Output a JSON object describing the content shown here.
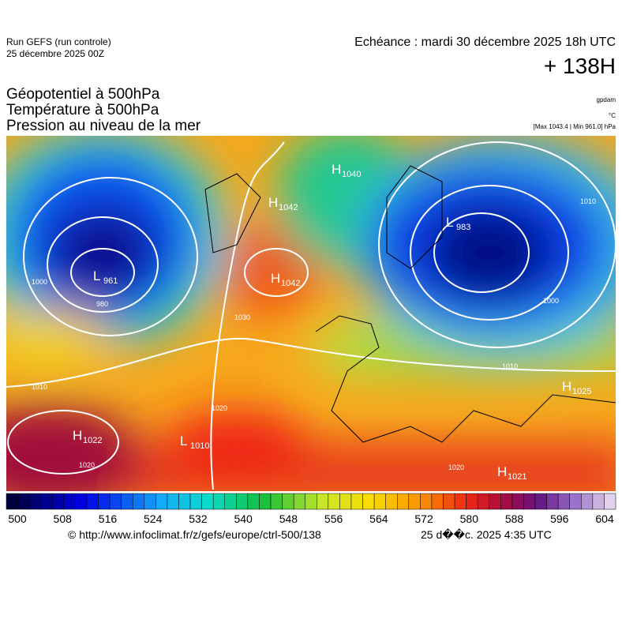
{
  "header": {
    "model": "Run GEFS (run controle)",
    "run": "25 décembre 2025 00Z",
    "echeance": "Echéance : mardi 30 décembre 2025 18h UTC",
    "lead": "+ 138H",
    "fields": [
      "Géopotentiel à 500hPa",
      "Température à 500hPa",
      "Pression au niveau de la mer"
    ],
    "units": [
      "gpdam",
      "°C",
      "[Max 1043.4 | Min 961.0] hPa"
    ]
  },
  "centers": [
    {
      "kind": "L",
      "value": 961
    },
    {
      "kind": "L",
      "value": 983
    },
    {
      "kind": "H",
      "value": 1042
    },
    {
      "kind": "H",
      "value": 1042
    },
    {
      "kind": "H",
      "value": 1040
    },
    {
      "kind": "H",
      "value": 1025
    },
    {
      "kind": "H",
      "value": 1022
    },
    {
      "kind": "L",
      "value": 1010
    },
    {
      "kind": "H",
      "value": 1021
    }
  ],
  "isobar_labels": [
    "1000",
    "980",
    "1010",
    "1020",
    "1030",
    "1000",
    "1010",
    "1020",
    "1020",
    "1010"
  ],
  "colorbar": {
    "ticks": [
      500,
      508,
      516,
      524,
      532,
      540,
      548,
      556,
      564,
      572,
      580,
      588,
      596,
      604
    ]
  },
  "footer": {
    "url": "© http://www.infoclimat.fr/z/gefs/europe/ctrl-500/138",
    "date": "25 d��c. 2025  4:35 UTC"
  }
}
